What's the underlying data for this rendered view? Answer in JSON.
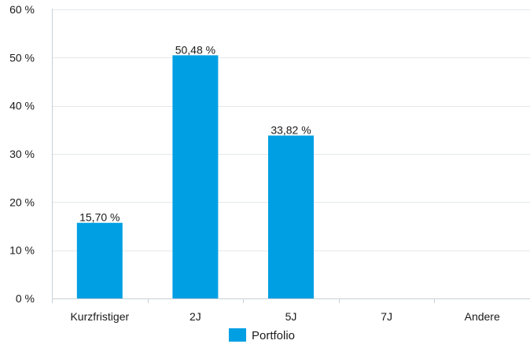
{
  "chart_data": {
    "type": "bar",
    "categories": [
      "Kurzfristiger",
      "2J",
      "5J",
      "7J",
      "Andere"
    ],
    "series": [
      {
        "name": "Portfolio",
        "values": [
          15.7,
          50.48,
          33.82,
          null,
          null
        ],
        "labels": [
          "15,70 %",
          "50,48 %",
          "33,82 %",
          "",
          ""
        ],
        "color": "#009fe3"
      }
    ],
    "ylim": [
      0,
      60
    ],
    "yticks": [
      0,
      10,
      20,
      30,
      40,
      50,
      60
    ],
    "ytick_labels": [
      "0 %",
      "10 %",
      "20 %",
      "30 %",
      "40 %",
      "50 %",
      "60 %"
    ],
    "grid": true,
    "grid_color": "#e3e8ec",
    "legend_position": "bottom-center",
    "title": "",
    "xlabel": "",
    "ylabel": ""
  }
}
